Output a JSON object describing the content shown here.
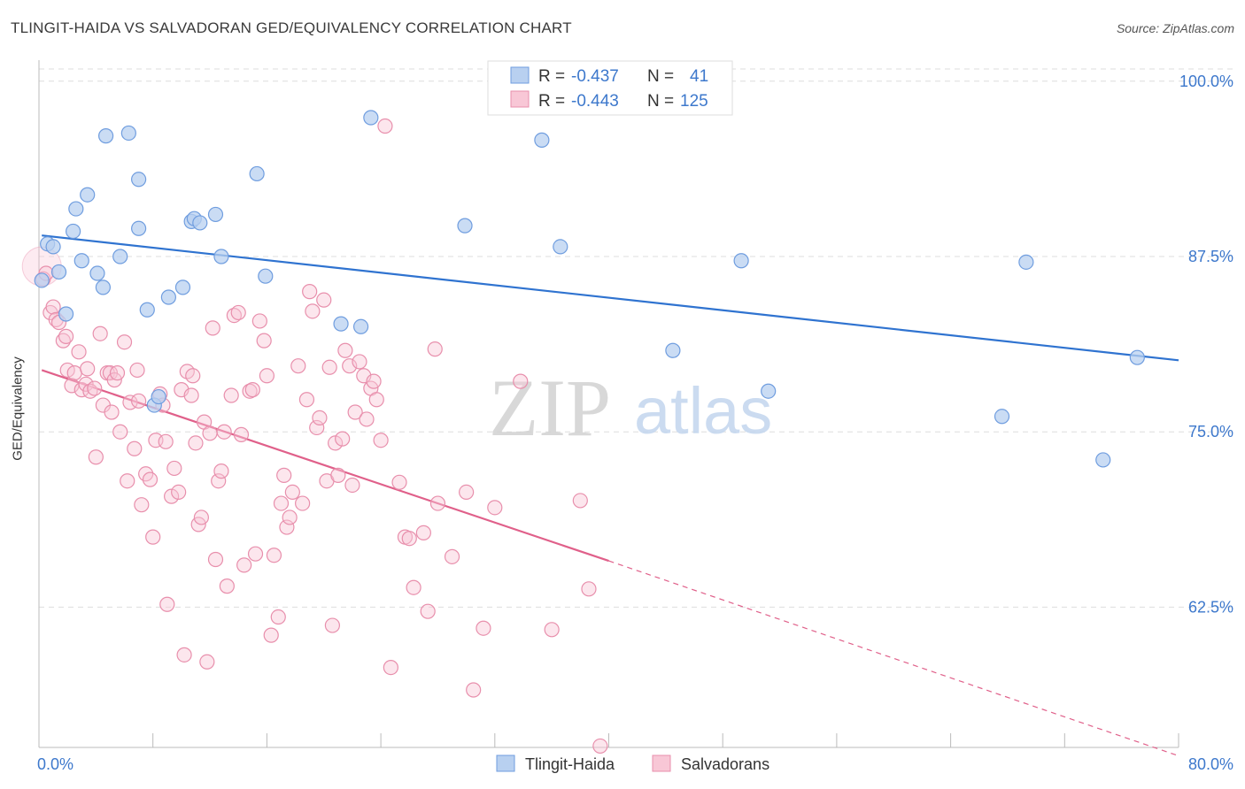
{
  "header": {
    "title": "TLINGIT-HAIDA VS SALVADORAN GED/EQUIVALENCY CORRELATION CHART",
    "source": "Source: ZipAtlas.com"
  },
  "watermark": {
    "zip": "ZIP",
    "atlas": "atlas"
  },
  "legend_box": {
    "rows": [
      {
        "r_label": "R =",
        "r_value": "-0.437",
        "n_label": "N =",
        "n_value": "41"
      },
      {
        "r_label": "R =",
        "r_value": "-0.443",
        "n_label": "N =",
        "n_value": "125"
      }
    ]
  },
  "bottom_legend": {
    "items": [
      "Tlingit-Haida",
      "Salvadorans"
    ]
  },
  "colors": {
    "blue_fill": "#b8d0f0",
    "blue_stroke": "#6f9ddf",
    "blue_line": "#2f73d0",
    "pink_fill": "#f8c7d6",
    "pink_stroke": "#e88fac",
    "pink_line": "#e0608a",
    "tick_label": "#3d78cc",
    "value_text": "#3d78cc",
    "grid": "#dddddd"
  },
  "chart_data": {
    "type": "scatter",
    "title": "TLINGIT-HAIDA VS SALVADORAN GED/EQUIVALENCY CORRELATION CHART",
    "xlabel": "",
    "ylabel": "GED/Equivalency",
    "xlim": [
      0,
      80
    ],
    "ylim": [
      52.5,
      101.5
    ],
    "x_tick_labels": [
      "0.0%",
      "80.0%"
    ],
    "y_ticks": [
      62.5,
      75.0,
      87.5,
      100.0
    ],
    "y_tick_labels": [
      "62.5%",
      "75.0%",
      "87.5%",
      "100.0%"
    ],
    "grid": true,
    "series": [
      {
        "name": "Tlingit-Haida",
        "color": "#6f9ddf",
        "trend": {
          "x0": 0.2,
          "y0": 89.0,
          "x1": 80.0,
          "y1": 80.1
        },
        "points": [
          [
            0.2,
            85.8
          ],
          [
            0.6,
            88.4
          ],
          [
            1.0,
            88.2
          ],
          [
            1.4,
            86.4
          ],
          [
            1.9,
            83.4
          ],
          [
            2.4,
            89.3
          ],
          [
            2.6,
            90.9
          ],
          [
            3.0,
            87.2
          ],
          [
            3.4,
            91.9
          ],
          [
            4.1,
            86.3
          ],
          [
            4.5,
            85.3
          ],
          [
            4.7,
            96.1
          ],
          [
            5.7,
            87.5
          ],
          [
            6.3,
            96.3
          ],
          [
            7.0,
            93.0
          ],
          [
            7.0,
            89.5
          ],
          [
            7.6,
            83.7
          ],
          [
            8.1,
            76.9
          ],
          [
            8.4,
            77.5
          ],
          [
            9.1,
            84.6
          ],
          [
            10.1,
            85.3
          ],
          [
            10.7,
            90.0
          ],
          [
            10.9,
            90.2
          ],
          [
            11.3,
            89.9
          ],
          [
            12.4,
            90.5
          ],
          [
            12.8,
            87.5
          ],
          [
            15.3,
            93.4
          ],
          [
            15.9,
            86.1
          ],
          [
            21.2,
            82.7
          ],
          [
            22.6,
            82.5
          ],
          [
            23.3,
            97.4
          ],
          [
            29.9,
            89.7
          ],
          [
            35.3,
            95.8
          ],
          [
            36.6,
            88.2
          ],
          [
            44.5,
            80.8
          ],
          [
            49.3,
            87.2
          ],
          [
            51.2,
            77.9
          ],
          [
            67.6,
            76.1
          ],
          [
            69.3,
            87.1
          ],
          [
            74.7,
            73.0
          ],
          [
            77.1,
            80.3
          ]
        ]
      },
      {
        "name": "Salvadorans",
        "color": "#e88fac",
        "trend": {
          "x0": 0.2,
          "y0": 79.4,
          "x1": 40.0,
          "y1": 65.8,
          "dash_x1": 80.0,
          "dash_y1": 51.9
        },
        "points": [
          [
            0.3,
            85.9
          ],
          [
            0.5,
            86.3
          ],
          [
            0.8,
            83.5
          ],
          [
            1.0,
            83.9
          ],
          [
            1.2,
            83.0
          ],
          [
            1.4,
            82.8
          ],
          [
            1.7,
            81.5
          ],
          [
            1.9,
            81.8
          ],
          [
            2.0,
            79.4
          ],
          [
            2.3,
            78.3
          ],
          [
            2.5,
            79.2
          ],
          [
            2.8,
            80.7
          ],
          [
            3.0,
            78.0
          ],
          [
            3.3,
            78.4
          ],
          [
            3.4,
            79.5
          ],
          [
            3.6,
            77.9
          ],
          [
            3.9,
            78.1
          ],
          [
            4.0,
            73.2
          ],
          [
            4.3,
            82.0
          ],
          [
            4.5,
            76.9
          ],
          [
            4.8,
            79.2
          ],
          [
            5.0,
            79.2
          ],
          [
            5.1,
            76.4
          ],
          [
            5.3,
            78.7
          ],
          [
            5.5,
            79.2
          ],
          [
            5.7,
            75.0
          ],
          [
            6.0,
            81.4
          ],
          [
            6.2,
            71.5
          ],
          [
            6.4,
            77.1
          ],
          [
            6.7,
            73.8
          ],
          [
            6.9,
            79.4
          ],
          [
            7.0,
            77.2
          ],
          [
            7.2,
            69.8
          ],
          [
            7.5,
            72.0
          ],
          [
            7.8,
            71.6
          ],
          [
            8.0,
            67.5
          ],
          [
            8.2,
            74.4
          ],
          [
            8.5,
            77.7
          ],
          [
            8.7,
            76.9
          ],
          [
            8.9,
            74.3
          ],
          [
            9.0,
            62.7
          ],
          [
            9.3,
            70.4
          ],
          [
            9.5,
            72.4
          ],
          [
            9.8,
            70.7
          ],
          [
            10.0,
            78.0
          ],
          [
            10.2,
            59.1
          ],
          [
            10.4,
            79.3
          ],
          [
            10.7,
            77.6
          ],
          [
            10.8,
            79.0
          ],
          [
            11.0,
            74.2
          ],
          [
            11.2,
            68.4
          ],
          [
            11.4,
            68.9
          ],
          [
            11.6,
            75.7
          ],
          [
            11.8,
            58.6
          ],
          [
            12.0,
            74.9
          ],
          [
            12.2,
            82.4
          ],
          [
            12.4,
            65.9
          ],
          [
            12.6,
            71.5
          ],
          [
            12.8,
            72.2
          ],
          [
            13.0,
            75.0
          ],
          [
            13.2,
            64.0
          ],
          [
            13.5,
            77.6
          ],
          [
            13.7,
            83.3
          ],
          [
            14.0,
            83.5
          ],
          [
            14.2,
            74.8
          ],
          [
            14.4,
            65.5
          ],
          [
            14.8,
            77.9
          ],
          [
            15.0,
            78.0
          ],
          [
            15.2,
            66.3
          ],
          [
            15.5,
            82.9
          ],
          [
            15.8,
            81.5
          ],
          [
            16.0,
            79.0
          ],
          [
            16.3,
            60.5
          ],
          [
            16.5,
            66.2
          ],
          [
            16.8,
            61.8
          ],
          [
            17.0,
            69.9
          ],
          [
            17.2,
            71.9
          ],
          [
            17.4,
            68.2
          ],
          [
            17.6,
            68.9
          ],
          [
            17.8,
            70.7
          ],
          [
            18.2,
            79.7
          ],
          [
            18.5,
            69.9
          ],
          [
            18.8,
            77.3
          ],
          [
            19.0,
            85.0
          ],
          [
            19.2,
            83.6
          ],
          [
            19.5,
            75.3
          ],
          [
            19.7,
            76.0
          ],
          [
            20.0,
            84.4
          ],
          [
            20.2,
            71.5
          ],
          [
            20.4,
            79.6
          ],
          [
            20.6,
            61.2
          ],
          [
            20.8,
            74.2
          ],
          [
            21.0,
            71.9
          ],
          [
            21.3,
            74.5
          ],
          [
            21.5,
            80.8
          ],
          [
            21.8,
            79.7
          ],
          [
            22.0,
            71.2
          ],
          [
            22.2,
            76.4
          ],
          [
            22.5,
            80.0
          ],
          [
            22.8,
            79.0
          ],
          [
            23.0,
            75.9
          ],
          [
            23.3,
            78.1
          ],
          [
            23.5,
            78.6
          ],
          [
            23.7,
            77.3
          ],
          [
            24.0,
            74.4
          ],
          [
            24.3,
            96.8
          ],
          [
            24.7,
            58.2
          ],
          [
            25.3,
            71.4
          ],
          [
            25.7,
            67.5
          ],
          [
            26.0,
            67.4
          ],
          [
            26.3,
            63.9
          ],
          [
            27.0,
            67.8
          ],
          [
            27.3,
            62.2
          ],
          [
            27.8,
            80.9
          ],
          [
            28.0,
            69.9
          ],
          [
            29.0,
            66.1
          ],
          [
            30.0,
            70.7
          ],
          [
            30.5,
            56.6
          ],
          [
            31.2,
            61.0
          ],
          [
            32.0,
            69.6
          ],
          [
            33.8,
            78.6
          ],
          [
            36.0,
            60.9
          ],
          [
            38.0,
            70.1
          ],
          [
            38.6,
            63.8
          ],
          [
            39.4,
            52.6
          ]
        ]
      }
    ]
  }
}
